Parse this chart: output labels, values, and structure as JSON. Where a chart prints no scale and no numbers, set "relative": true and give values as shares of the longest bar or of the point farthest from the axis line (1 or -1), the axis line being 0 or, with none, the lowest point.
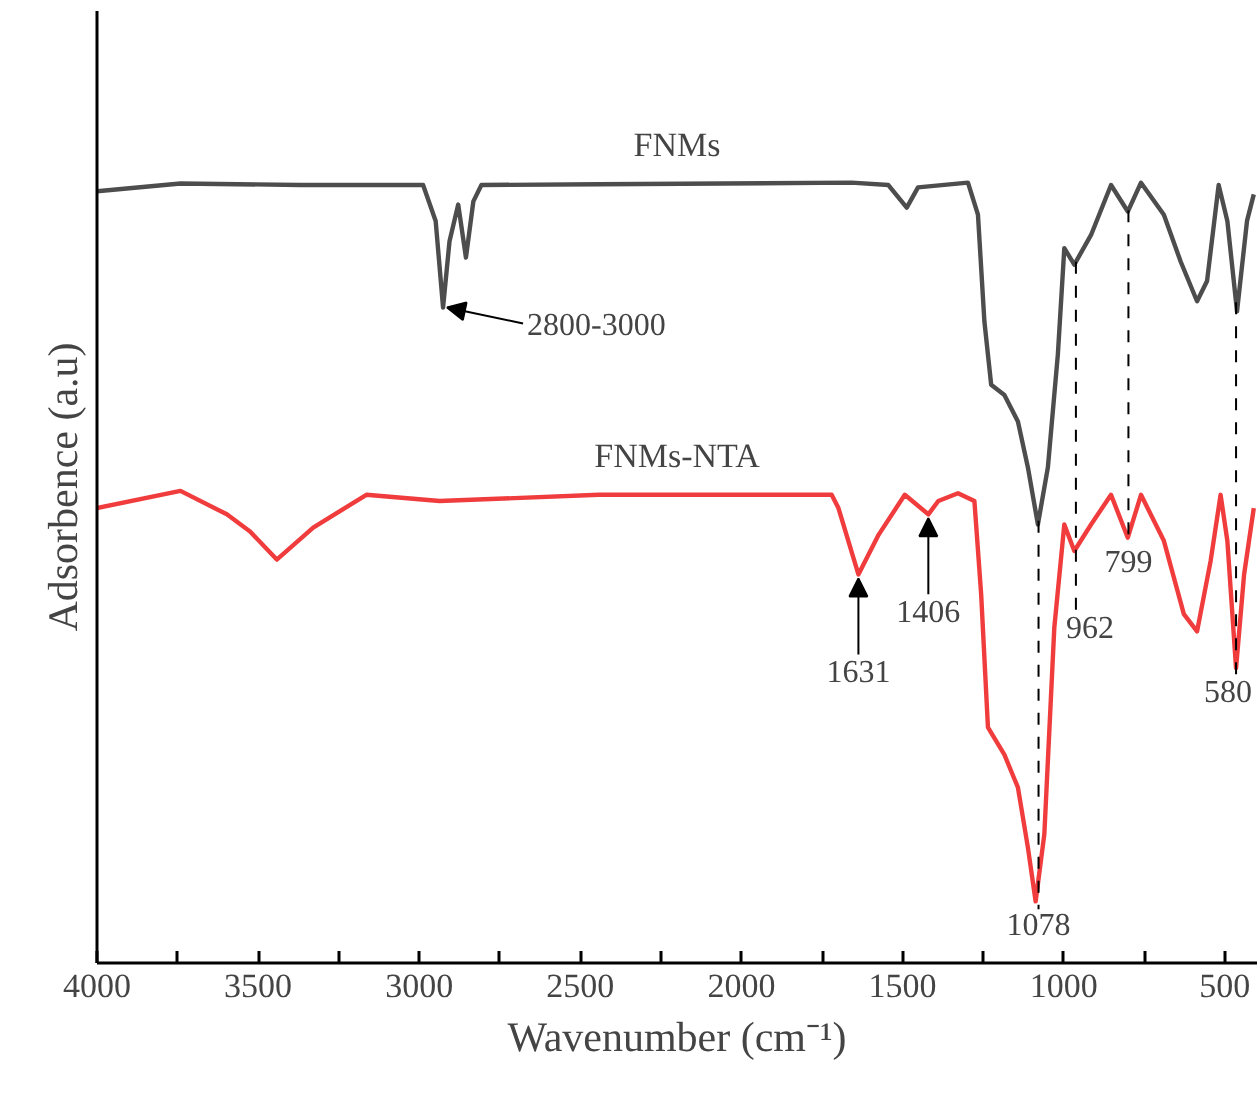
{
  "chart_data": {
    "type": "line",
    "relative": true,
    "xlabel": "Wavenumber (cm⁻¹)",
    "ylabel": "Adsorbence (a.u)",
    "xlim": [
      4000,
      400
    ],
    "xticks": [
      4000,
      {
        "value": 3750,
        "label": null
      },
      3500,
      {
        "value": 3250,
        "label": null
      },
      3000,
      {
        "value": 2750,
        "label": null
      },
      2500,
      {
        "value": 2250,
        "label": null
      },
      2000,
      {
        "value": 1750,
        "label": null
      },
      1500,
      {
        "value": 1250,
        "label": null
      },
      1000,
      {
        "value": 750,
        "label": null
      },
      500
    ],
    "tick_labels": "x",
    "line_style": "solid",
    "marker": "none",
    "series": [
      {
        "name": "FNMs",
        "color": "#4d4d4d",
        "x": [
          4000,
          3741,
          3370,
          2988,
          2949,
          2926,
          2906,
          2879,
          2855,
          2832,
          2807,
          2442,
          1658,
          1544,
          1487,
          1452,
          1297,
          1266,
          1246,
          1225,
          1184,
          1142,
          1111,
          1080,
          1049,
          1018,
          998,
          967,
          915,
          853,
          801,
          760,
          689,
          637,
          586,
          555,
          519,
          492,
          462,
          431,
          410
        ],
        "values": [
          0.989,
          0.999,
          0.997,
          0.997,
          0.951,
          0.84,
          0.925,
          0.972,
          0.904,
          0.976,
          0.997,
          0.998,
          1.0,
          0.997,
          0.968,
          0.994,
          1.0,
          0.959,
          0.822,
          0.741,
          0.728,
          0.694,
          0.635,
          0.562,
          0.635,
          0.78,
          0.916,
          0.895,
          0.933,
          0.997,
          0.963,
          1.0,
          0.959,
          0.899,
          0.848,
          0.874,
          0.997,
          0.951,
          0.835,
          0.951,
          0.985
        ]
      },
      {
        "name": "FNMs-NTA",
        "color": "#f03c3c",
        "x": [
          4000,
          3741,
          3597,
          3525,
          3442,
          3329,
          3164,
          2937,
          2442,
          1720,
          1699,
          1637,
          1574,
          1493,
          1420,
          1389,
          1328,
          1277,
          1256,
          1235,
          1184,
          1142,
          1111,
          1087,
          1060,
          1029,
          998,
          967,
          915,
          853,
          801,
          760,
          689,
          627,
          586,
          544,
          513,
          492,
          465,
          440,
          410
        ],
        "values": [
          0.583,
          0.605,
          0.575,
          0.553,
          0.517,
          0.558,
          0.6,
          0.592,
          0.6,
          0.6,
          0.583,
          0.498,
          0.549,
          0.6,
          0.575,
          0.592,
          0.602,
          0.592,
          0.472,
          0.302,
          0.267,
          0.225,
          0.148,
          0.079,
          0.165,
          0.43,
          0.562,
          0.528,
          0.562,
          0.6,
          0.545,
          0.6,
          0.541,
          0.447,
          0.425,
          0.515,
          0.6,
          0.541,
          0.378,
          0.498,
          0.583
        ]
      }
    ],
    "ref_lines": [
      {
        "axis": "x",
        "value": 1078,
        "label": "1078",
        "line_style": "dashed",
        "color": "#000000"
      },
      {
        "axis": "x",
        "value": 962,
        "label": "962",
        "line_style": "dashed",
        "color": "#000000"
      },
      {
        "axis": "x",
        "value": 799,
        "label": "799",
        "line_style": "dashed",
        "color": "#000000"
      }
    ],
    "annotations": [
      {
        "text": "2800-3000",
        "x": 2926,
        "y": 0.84
      },
      {
        "text": "1631",
        "x": 1637,
        "y": 0.498
      },
      {
        "text": "1406",
        "x": 1420,
        "y": 0.575
      },
      {
        "text": "580",
        "x": 465,
        "y": 0.378
      }
    ]
  }
}
